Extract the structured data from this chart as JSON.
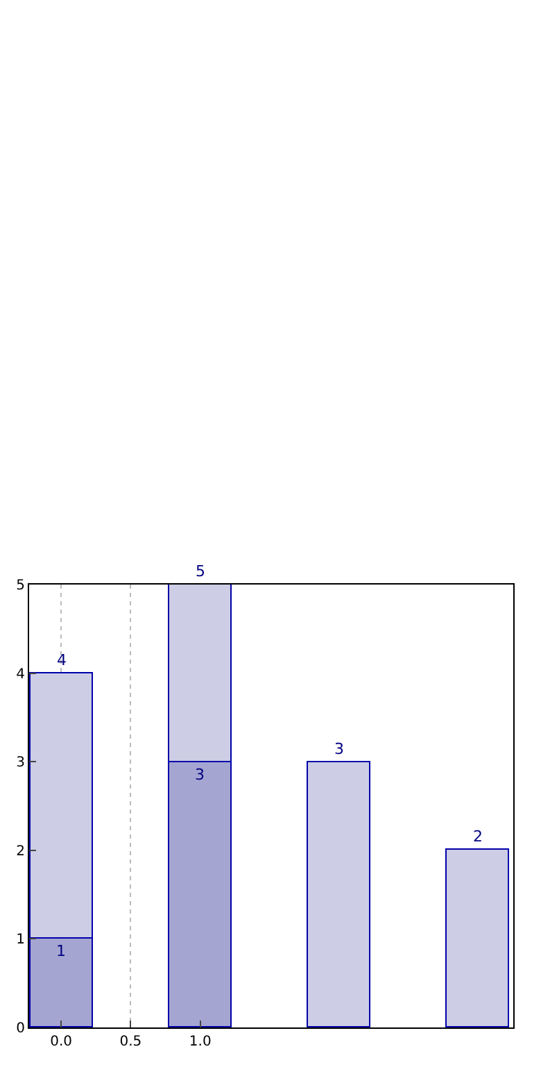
{
  "chart_data": {
    "type": "bar",
    "stacked": true,
    "grid": "x",
    "legend": false,
    "xlim": [
      -0.23,
      3.25
    ],
    "xticks": [
      {
        "value": 0,
        "label": "0.0"
      },
      {
        "value": 0.5,
        "label": "0.5"
      },
      {
        "value": 1,
        "label": "1.0"
      }
    ],
    "ylim": [
      0,
      5
    ],
    "yticks": [
      0,
      1,
      2,
      3,
      4,
      5
    ],
    "series": [
      {
        "x": [
          0,
          1
        ],
        "values": [
          1,
          3
        ],
        "color": "#a5a5d2",
        "value_labels": [
          "1",
          "3"
        ]
      },
      {
        "x": [
          0,
          1,
          2,
          3
        ],
        "values": [
          3,
          2,
          3,
          2
        ],
        "color": "#cdcde5"
      }
    ],
    "totals": [
      "4",
      "5",
      "3",
      "2"
    ]
  }
}
